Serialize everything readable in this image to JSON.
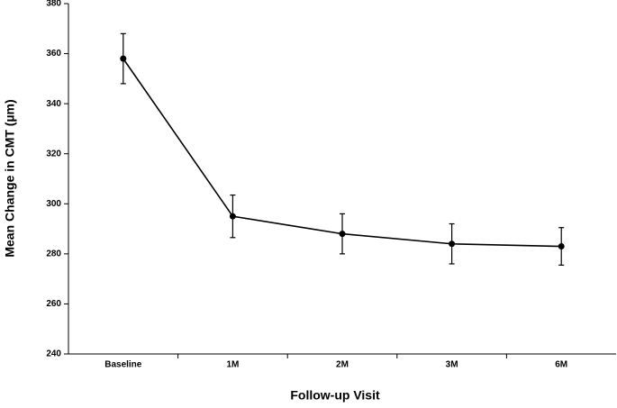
{
  "chart_data": {
    "type": "line",
    "x_label": "Follow-up Visit",
    "y_label": "Mean Change in CMT (µm)",
    "categories": [
      "Baseline",
      "1M",
      "2M",
      "3M",
      "6M"
    ],
    "series": [
      {
        "values": [
          358,
          295,
          288,
          284,
          283
        ],
        "errors": [
          10,
          8.5,
          8,
          8,
          7.5
        ],
        "color": "#000000"
      }
    ],
    "ylim": [
      240,
      380
    ],
    "yticks": [
      240,
      260,
      280,
      300,
      320,
      340,
      360,
      380
    ],
    "grid": false
  }
}
